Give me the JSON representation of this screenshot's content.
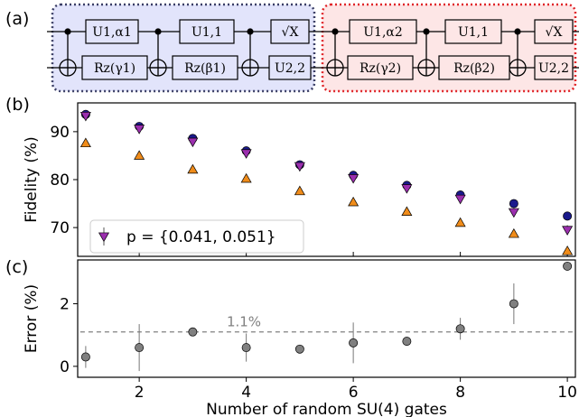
{
  "panel_labels": {
    "a": "(a)",
    "b": "(b)",
    "c": "(c)"
  },
  "circuit": {
    "block1": {
      "top": [
        "U1,α1",
        "U1,1",
        "√X"
      ],
      "bottom": [
        "Rz(γ1)",
        "Rz(β1)",
        "U2,2"
      ],
      "fill": "#e2e4fb",
      "border": "#3b3f66"
    },
    "block2": {
      "top": [
        "U1,α2",
        "U1,1",
        "√X"
      ],
      "bottom": [
        "Rz(γ2)",
        "Rz(β2)",
        "U2,2"
      ],
      "fill": "#fde6e6",
      "border": "#e0262a"
    }
  },
  "chart_data": [
    {
      "type": "scatter",
      "panel": "b",
      "ylabel": "Fidelity (%)",
      "xlim": [
        0.85,
        10.15
      ],
      "ylim": [
        64,
        96
      ],
      "yticks": [
        70,
        80,
        90
      ],
      "x": [
        1,
        2,
        3,
        4,
        5,
        6,
        7,
        8,
        9,
        10
      ],
      "series": [
        {
          "marker": "circle",
          "color": "#1a1a8c",
          "values": [
            93.6,
            91.1,
            88.6,
            86.0,
            83.1,
            80.9,
            78.8,
            76.8,
            75.0,
            72.4
          ]
        },
        {
          "marker": "triangle-down",
          "color": "#9b2fae",
          "name": "p = {0.041, 0.051}",
          "values": [
            93.3,
            90.6,
            87.9,
            85.5,
            82.8,
            80.3,
            78.2,
            76.0,
            73.2,
            69.5
          ],
          "errors": [
            0.3,
            0.4,
            0.4,
            0.4,
            0.4,
            0.5,
            0.5,
            0.6,
            0.8,
            1.0
          ]
        },
        {
          "marker": "triangle-up",
          "color": "#f08c1a",
          "values": [
            87.6,
            85.0,
            82.1,
            80.2,
            77.6,
            75.3,
            73.3,
            71.0,
            68.7,
            65.1
          ]
        }
      ],
      "legend": {
        "position": "bottom-left",
        "label": "p = {0.041, 0.051}"
      }
    },
    {
      "type": "scatter",
      "panel": "c",
      "xlabel": "Number of random SU(4) gates",
      "ylabel": "Error (%)",
      "xlim": [
        0.85,
        10.15
      ],
      "ylim": [
        -0.35,
        3.4
      ],
      "yticks": [
        0,
        2
      ],
      "xticks": [
        2,
        4,
        6,
        8,
        10
      ],
      "x": [
        1,
        2,
        3,
        4,
        5,
        6,
        7,
        8,
        9,
        10
      ],
      "series": [
        {
          "marker": "circle",
          "color": "#808080",
          "values": [
            0.3,
            0.6,
            1.1,
            0.6,
            0.55,
            0.75,
            0.8,
            1.2,
            2.0,
            3.2
          ],
          "errors": [
            0.35,
            0.75,
            0.1,
            0.45,
            0.1,
            0.65,
            0.1,
            0.35,
            0.65,
            0.1
          ]
        }
      ],
      "reference_line": {
        "value": 1.1,
        "label": "1.1%",
        "style": "dashed",
        "color": "#808080"
      }
    }
  ]
}
